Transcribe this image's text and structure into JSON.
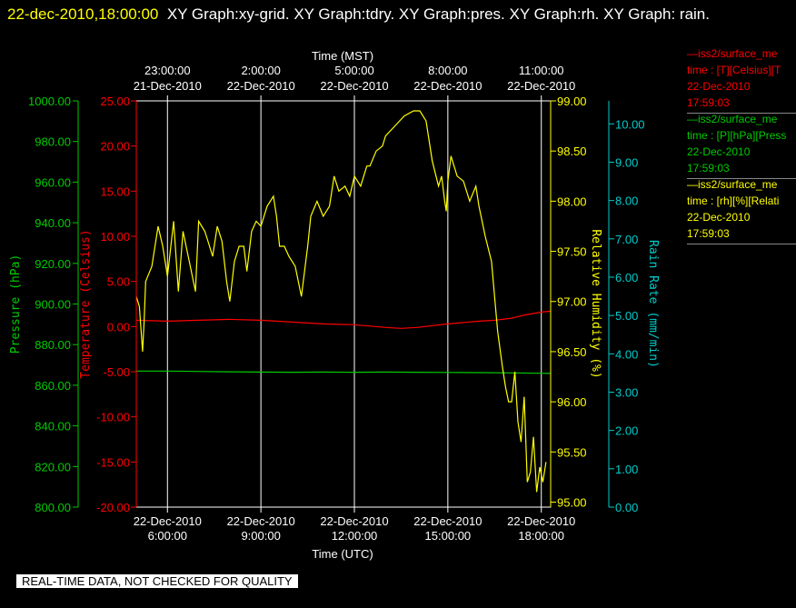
{
  "header": {
    "timestamp": "22-dec-2010,18:00:00",
    "graph_titles": "XY Graph:xy-grid.  XY Graph:tdry.  XY Graph:pres.  XY Graph:rh.  XY Graph: rain."
  },
  "notice": "REAL-TIME DATA, NOT CHECKED FOR QUALITY",
  "legend": [
    {
      "line1": "iss2/surface_me",
      "line2": "time : [T][Celsius][T",
      "line3": "22-Dec-2010",
      "line4": "17:59:03",
      "color": "#ff0000"
    },
    {
      "line1": "iss2/surface_me",
      "line2": "time : [P][hPa][Press",
      "line3": "22-Dec-2010",
      "line4": "17:59:03",
      "color": "#00cc00"
    },
    {
      "line1": "iss2/surface_me",
      "line2": "time : [rh][%][Relati",
      "line3": "22-Dec-2010",
      "line4": "17:59:03",
      "color": "#ffff00"
    }
  ],
  "chart_data": {
    "type": "line",
    "x_bottom": {
      "label": "Time (UTC)",
      "range_hours_utc": [
        5.0,
        18.3
      ],
      "ticks": [
        {
          "hour": 6,
          "date": "22-Dec-2010",
          "time": "6:00:00"
        },
        {
          "hour": 9,
          "date": "22-Dec-2010",
          "time": "9:00:00"
        },
        {
          "hour": 12,
          "date": "22-Dec-2010",
          "time": "12:00:00"
        },
        {
          "hour": 15,
          "date": "22-Dec-2010",
          "time": "15:00:00"
        },
        {
          "hour": 18,
          "date": "22-Dec-2010",
          "time": "18:00:00"
        }
      ]
    },
    "x_top": {
      "label": "Time (MST)",
      "ticks": [
        {
          "hour": 6,
          "time": "23:00:00",
          "date": "21-Dec-2010"
        },
        {
          "hour": 9,
          "time": "2:00:00",
          "date": "22-Dec-2010"
        },
        {
          "hour": 12,
          "time": "5:00:00",
          "date": "22-Dec-2010"
        },
        {
          "hour": 15,
          "time": "8:00:00",
          "date": "22-Dec-2010"
        },
        {
          "hour": 18,
          "time": "11:00:00",
          "date": "22-Dec-2010"
        }
      ]
    },
    "axes": {
      "pressure": {
        "label": "Pressure (hPa)",
        "range": [
          800,
          1000
        ],
        "ticks": [
          "1000.00",
          "980.00",
          "960.00",
          "940.00",
          "920.00",
          "900.00",
          "880.00",
          "860.00",
          "840.00",
          "820.00",
          "800.00"
        ],
        "color": "#00cc00"
      },
      "temperature": {
        "label": "Temperature (Celsius)",
        "range": [
          -20,
          25
        ],
        "ticks": [
          "25.00",
          "20.00",
          "15.00",
          "10.00",
          "5.00",
          "0.00",
          "-5.00",
          "-10.00",
          "-15.00",
          "-20.00"
        ],
        "color": "#ff0000"
      },
      "rh": {
        "label": "Relative Humidity (%)",
        "range": [
          94.95,
          99.0
        ],
        "ticks": [
          "99.00",
          "98.50",
          "98.00",
          "97.50",
          "97.00",
          "96.50",
          "96.00",
          "95.50",
          "95.00"
        ],
        "tick_values": [
          99.0,
          98.5,
          98.0,
          97.5,
          97.0,
          96.5,
          96.0,
          95.5,
          95.0
        ],
        "color": "#ffff00"
      },
      "rain": {
        "label": "Rain Rate (mm/min)",
        "range": [
          0,
          10.6
        ],
        "ticks": [
          "10.00",
          "9.00",
          "8.00",
          "7.00",
          "6.00",
          "5.00",
          "4.00",
          "3.00",
          "2.00",
          "1.00",
          "0.00"
        ],
        "tick_values": [
          10,
          9,
          8,
          7,
          6,
          5,
          4,
          3,
          2,
          1,
          0
        ],
        "color": "#00cccc"
      }
    },
    "grid": "vertical lines at x ticks",
    "series": [
      {
        "name": "iss2/surface_me time : [T][Celsius][T",
        "axis": "temperature",
        "color": "#ff0000",
        "x": [
          5.0,
          6.0,
          7.0,
          8.0,
          9.0,
          10.0,
          11.0,
          12.0,
          13.0,
          13.5,
          14.0,
          15.0,
          16.0,
          16.5,
          17.0,
          17.5,
          18.0,
          18.3
        ],
        "y": [
          0.7,
          0.6,
          0.7,
          0.8,
          0.7,
          0.5,
          0.3,
          0.2,
          -0.1,
          -0.2,
          -0.1,
          0.3,
          0.6,
          0.7,
          0.9,
          1.3,
          1.6,
          1.7
        ]
      },
      {
        "name": "iss2/surface_me time : [P][hPa][Press",
        "axis": "pressure",
        "color": "#00cc00",
        "x": [
          5.0,
          6.0,
          7.0,
          8.0,
          9.0,
          10.0,
          11.0,
          12.0,
          13.0,
          14.0,
          15.0,
          16.0,
          17.0,
          18.0,
          18.3
        ],
        "y": [
          867.0,
          867.0,
          866.8,
          866.6,
          866.5,
          866.4,
          866.5,
          866.4,
          866.5,
          866.4,
          866.3,
          866.2,
          866.1,
          865.9,
          865.8
        ]
      },
      {
        "name": "iss2/surface_me time : [rh][%][Relati",
        "axis": "rh",
        "color": "#ffff00",
        "x": [
          5.0,
          5.1,
          5.2,
          5.25,
          5.3,
          5.5,
          5.7,
          5.85,
          6.0,
          6.2,
          6.35,
          6.5,
          6.7,
          6.9,
          7.0,
          7.2,
          7.3,
          7.45,
          7.6,
          7.75,
          7.9,
          8.0,
          8.15,
          8.3,
          8.45,
          8.55,
          8.7,
          8.85,
          9.0,
          9.2,
          9.4,
          9.5,
          9.6,
          9.75,
          9.9,
          10.1,
          10.3,
          10.5,
          10.6,
          10.8,
          11.0,
          11.2,
          11.35,
          11.5,
          11.7,
          11.85,
          12.0,
          12.2,
          12.4,
          12.5,
          12.7,
          12.9,
          13.0,
          13.3,
          13.6,
          13.9,
          14.1,
          14.3,
          14.5,
          14.7,
          14.8,
          14.9,
          14.95,
          15.0,
          15.1,
          15.3,
          15.5,
          15.7,
          15.9,
          16.0,
          16.2,
          16.4,
          16.6,
          16.75,
          16.85,
          16.95,
          17.05,
          17.15,
          17.25,
          17.35,
          17.45,
          17.55,
          17.65,
          17.75,
          17.85,
          17.95,
          18.05,
          18.15
        ],
        "y": [
          97.05,
          96.95,
          96.5,
          96.8,
          97.2,
          97.35,
          97.75,
          97.55,
          97.25,
          97.8,
          97.1,
          97.7,
          97.4,
          97.1,
          97.8,
          97.7,
          97.6,
          97.45,
          97.75,
          97.6,
          97.2,
          97.0,
          97.4,
          97.55,
          97.55,
          97.3,
          97.7,
          97.8,
          97.75,
          97.95,
          98.05,
          97.85,
          97.55,
          97.55,
          97.45,
          97.35,
          97.05,
          97.55,
          97.85,
          98.0,
          97.85,
          97.95,
          98.25,
          98.1,
          98.15,
          98.05,
          98.25,
          98.15,
          98.35,
          98.35,
          98.5,
          98.55,
          98.65,
          98.75,
          98.85,
          98.9,
          98.9,
          98.8,
          98.4,
          98.15,
          98.25,
          98.0,
          97.9,
          98.2,
          98.45,
          98.25,
          98.2,
          98.0,
          98.15,
          97.95,
          97.65,
          97.4,
          96.7,
          96.35,
          96.15,
          96.0,
          96.0,
          96.3,
          95.8,
          95.6,
          96.05,
          95.2,
          95.3,
          95.65,
          95.1,
          95.35,
          95.2,
          95.4
        ]
      }
    ]
  }
}
